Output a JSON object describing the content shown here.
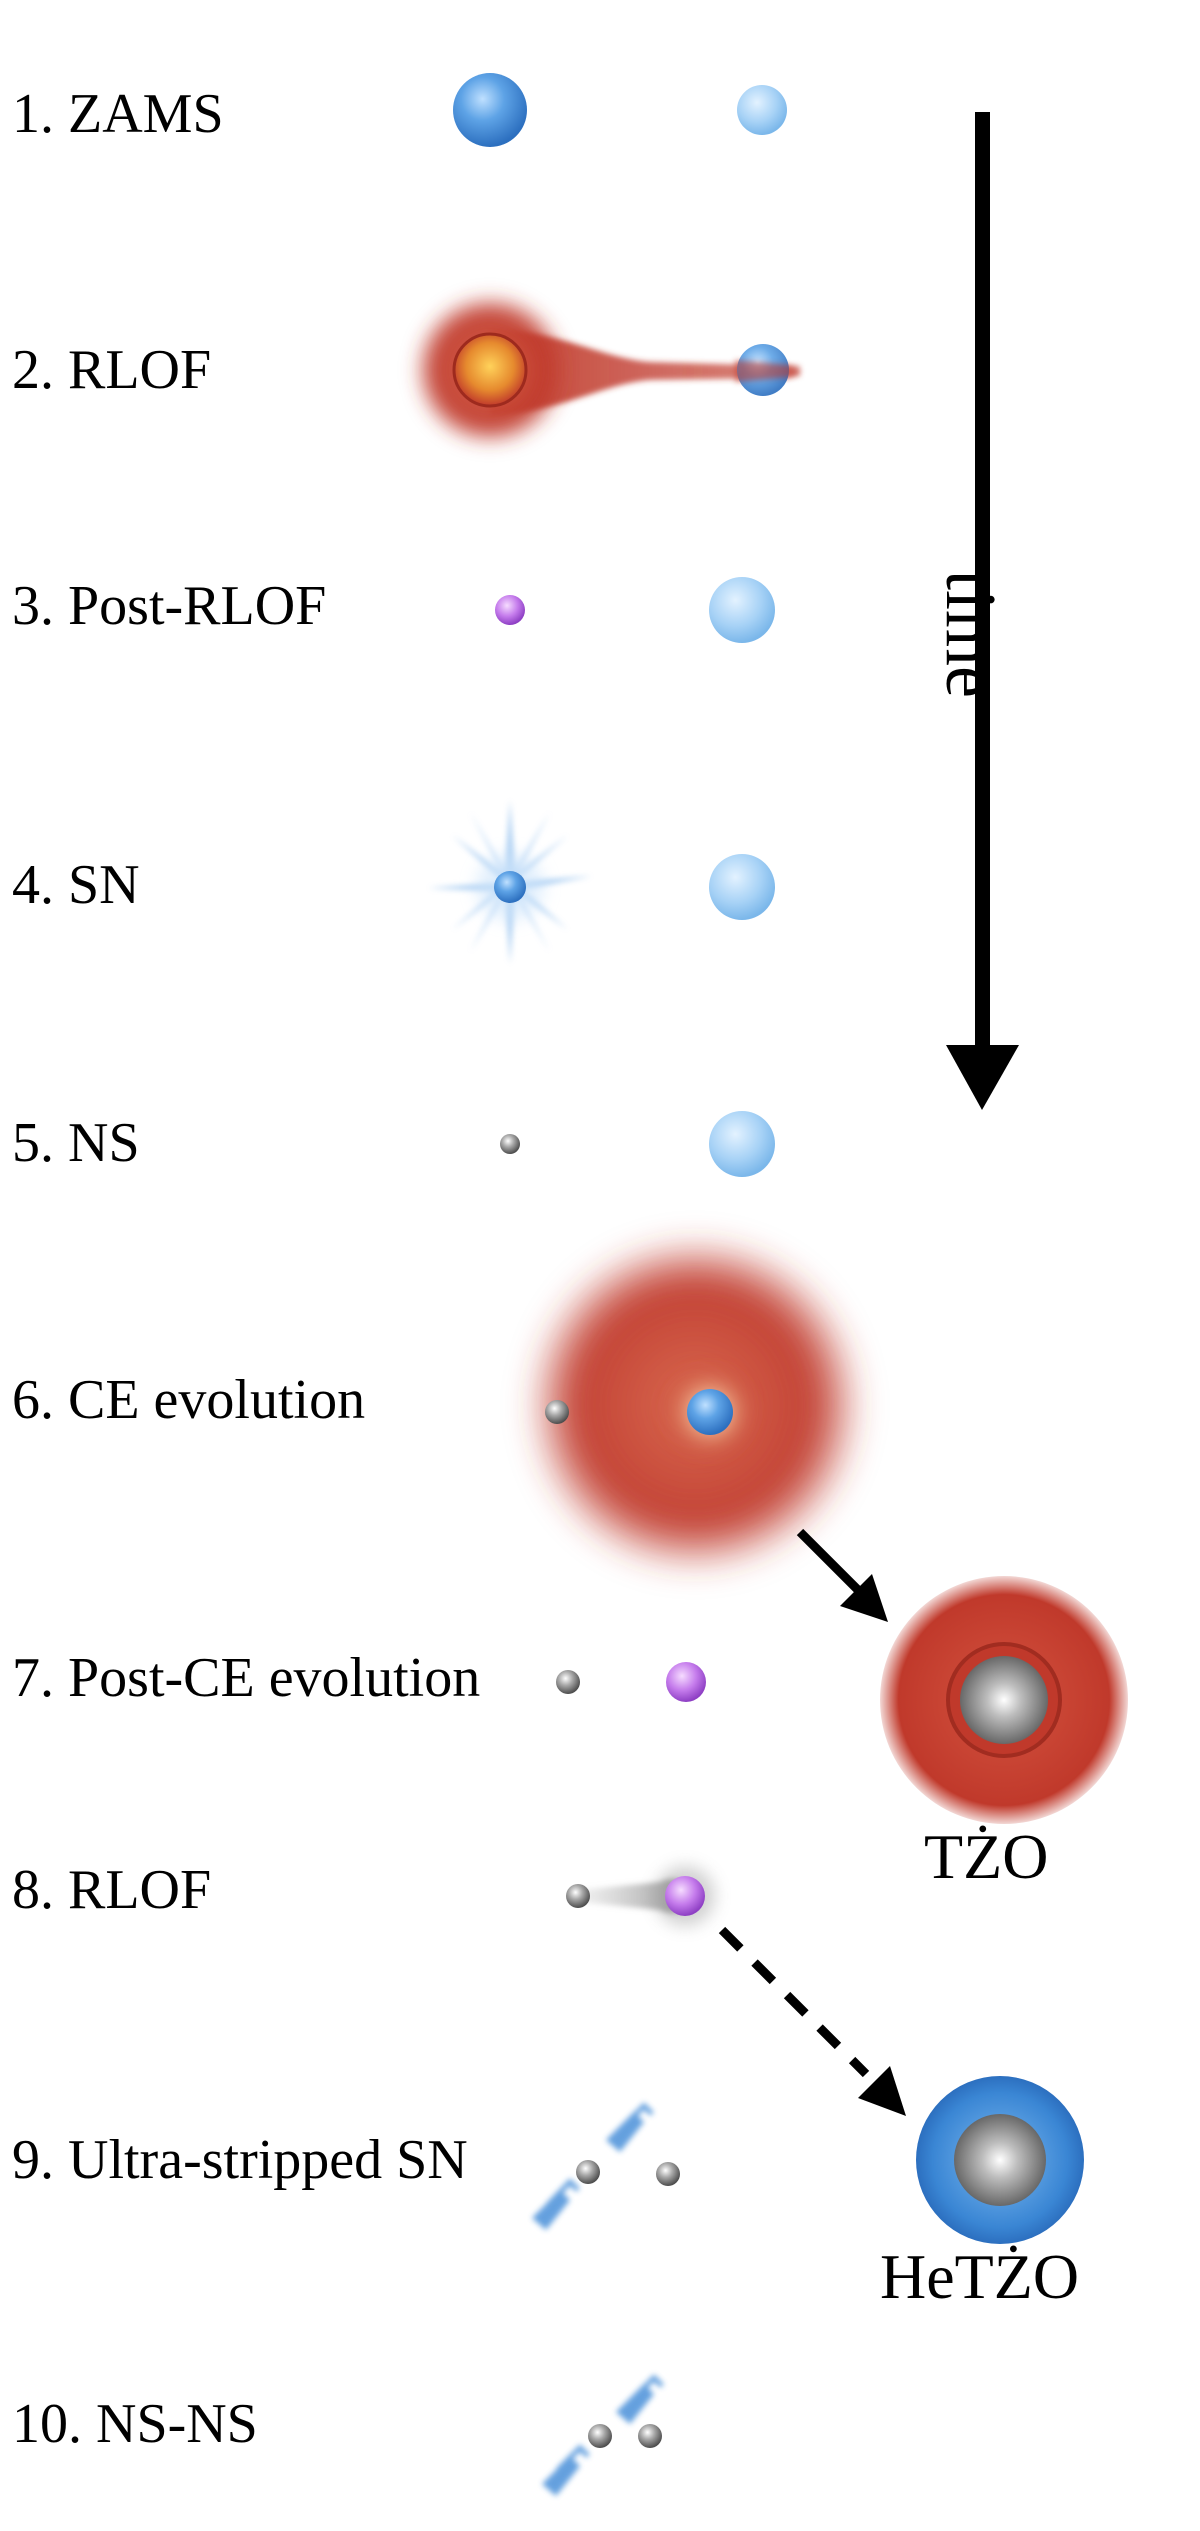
{
  "stages": [
    {
      "label": "1. ZAMS"
    },
    {
      "label": "2. RLOF"
    },
    {
      "label": "3. Post-RLOF"
    },
    {
      "label": "4. SN"
    },
    {
      "label": "5. NS"
    },
    {
      "label": "6. CE evolution"
    },
    {
      "label": "7. Post-CE evolution"
    },
    {
      "label": "8. RLOF"
    },
    {
      "label": "9. Ultra-stripped SN"
    },
    {
      "label": "10. NS-NS"
    }
  ],
  "time_axis": {
    "label": "time"
  },
  "outcomes": [
    {
      "label": "TŻO"
    },
    {
      "label": "HeTŻO"
    }
  ],
  "colors": {
    "main_sequence_blue": "#4a90d9",
    "light_blue": "#9ccbf2",
    "red_envelope": "#c0392b",
    "helium_star_purple": "#b05be0",
    "neutron_star_grey": "#8c8c8c",
    "arrow": "#000000"
  }
}
